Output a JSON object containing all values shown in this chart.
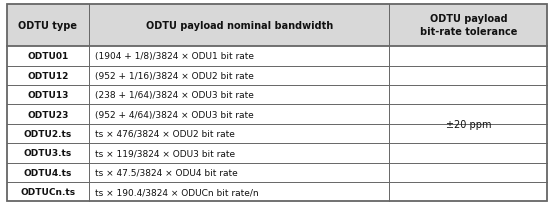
{
  "header": [
    "ODTU type",
    "ODTU payload nominal bandwidth",
    "ODTU payload\nbit-rate tolerance"
  ],
  "rows": [
    [
      "ODTU01",
      "(1904 + 1/8)/3824 × ODU1 bit rate"
    ],
    [
      "ODTU12",
      "(952 + 1/16)/3824 × ODU2 bit rate"
    ],
    [
      "ODTU13",
      "(238 + 1/64)/3824 × ODU3 bit rate"
    ],
    [
      "ODTU23",
      "(952 + 4/64)/3824 × ODU3 bit rate"
    ],
    [
      "ODTU2.ts",
      "ts × 476/3824 × ODU2 bit rate"
    ],
    [
      "ODTU3.ts",
      "ts × 119/3824 × ODU3 bit rate"
    ],
    [
      "ODTU4.ts",
      "ts × 47.5/3824 × ODU4 bit rate"
    ],
    [
      "ODTUCn.ts",
      "ts × 190.4/3824 × ODUCn bit rate/n"
    ]
  ],
  "tolerance": "±20 ppm",
  "header_bg": "#d8d8d8",
  "bg_color": "#ffffff",
  "border_color": "#666666",
  "text_color": "#111111",
  "fig_width": 5.54,
  "fig_height": 2.07,
  "dpi": 100
}
